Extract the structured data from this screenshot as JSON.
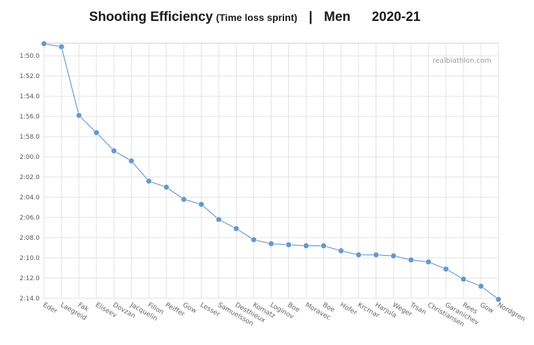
{
  "title": {
    "main": "Shooting Efficiency",
    "sub": "(Time loss sprint)",
    "separator": "|",
    "group": "Men",
    "season": "2020-21"
  },
  "watermark": "realbiathlon.com",
  "colors": {
    "line": "#6699cc",
    "grid": "#e2e2e2",
    "frame": "#cccccc"
  },
  "chart_data": {
    "type": "line",
    "title": "Shooting Efficiency (Time loss sprint) | Men 2020-21",
    "xlabel": "",
    "ylabel": "",
    "y_reversed": true,
    "ylim_seconds": [
      108.75,
      134.0
    ],
    "yticks_seconds": [
      110,
      112,
      114,
      116,
      118,
      120,
      122,
      124,
      126,
      128,
      130,
      132,
      134
    ],
    "yticks": [
      "1:50.0",
      "1:52.0",
      "1:54.0",
      "1:56.0",
      "1:58.0",
      "2:00.0",
      "2:02.0",
      "2:04.0",
      "2:06.0",
      "2:08.0",
      "2:10.0",
      "2:12.0",
      "2:14.0"
    ],
    "grid": true,
    "categories": [
      "Eder",
      "Laegreid",
      "Fak",
      "Eliseev",
      "Dovzan",
      "Jacquelin",
      "Fillon",
      "Peiffer",
      "Gow",
      "Lesser",
      "Samuelsson",
      "Desthieux",
      "Komatz",
      "Loginov",
      "Boe",
      "Moravec",
      "Boe",
      "Hofer",
      "Krcmar",
      "Harjula",
      "Weger",
      "Trsan",
      "Christiansen",
      "Garanichev",
      "Rees",
      "Gow",
      "Nordgren"
    ],
    "values_seconds": [
      108.8,
      109.1,
      115.9,
      117.6,
      119.4,
      120.4,
      122.4,
      123.0,
      124.2,
      124.7,
      126.2,
      127.1,
      128.2,
      128.6,
      128.7,
      128.8,
      128.8,
      129.3,
      129.7,
      129.7,
      129.8,
      130.2,
      130.4,
      131.1,
      132.1,
      132.8,
      134.1
    ],
    "values": [
      "1:48.8",
      "1:49.1",
      "1:55.9",
      "1:57.6",
      "1:59.4",
      "2:00.4",
      "2:02.4",
      "2:03.0",
      "2:04.2",
      "2:04.7",
      "2:06.2",
      "2:07.1",
      "2:08.2",
      "2:08.6",
      "2:08.7",
      "2:08.8",
      "2:08.8",
      "2:09.3",
      "2:09.7",
      "2:09.7",
      "2:09.8",
      "2:10.2",
      "2:10.4",
      "2:11.1",
      "2:12.1",
      "2:12.8",
      "2:14.1"
    ]
  }
}
